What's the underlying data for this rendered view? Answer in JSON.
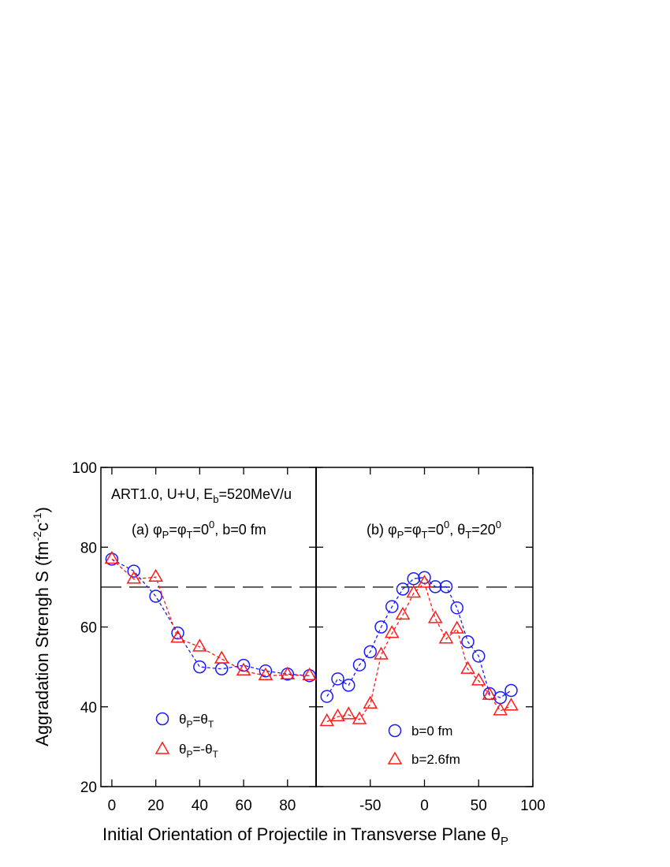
{
  "chart_data": [
    {
      "type": "line",
      "panel": "a",
      "ylabel": "Aggradation Strengh S (fm⁻²c⁻¹)",
      "ylim": [
        20,
        100
      ],
      "xlim": [
        -5,
        93
      ],
      "yticks": [
        20,
        40,
        60,
        80,
        100
      ],
      "xticks": [
        0,
        20,
        40,
        60,
        80
      ],
      "annotations": [
        "ART1.0, U+U, E_b=520MeV/u",
        "(a) φP=φT=0⁰, b=0 fm"
      ],
      "reference_line": 70,
      "series": [
        {
          "name": "θP=θT",
          "marker": "circle",
          "color": "#1a1aff",
          "x": [
            0,
            10,
            20,
            30,
            40,
            50,
            60,
            70,
            80,
            90
          ],
          "y": [
            77,
            74,
            67.7,
            58.5,
            50,
            49.5,
            50.4,
            49,
            48.2,
            47.8
          ]
        },
        {
          "name": "θP=-θT",
          "marker": "triangle",
          "color": "#ff1a1a",
          "x": [
            0,
            10,
            20,
            30,
            40,
            50,
            60,
            70,
            80,
            90
          ],
          "y": [
            77,
            72,
            72.5,
            57.2,
            55,
            52,
            49,
            47.8,
            48,
            47.8
          ]
        }
      ]
    },
    {
      "type": "line",
      "panel": "b",
      "ylim": [
        20,
        100
      ],
      "xlim": [
        -100,
        100
      ],
      "xticks": [
        -50,
        0,
        50,
        100
      ],
      "annotations": [
        "(b) φP=φT=0⁰, θT=20⁰"
      ],
      "reference_line": 70,
      "series": [
        {
          "name": "b=0 fm",
          "marker": "circle",
          "color": "#1a1aff",
          "x": [
            -90,
            -80,
            -70,
            -60,
            -50,
            -40,
            -30,
            -20,
            -10,
            0,
            10,
            20,
            30,
            40,
            50,
            60,
            70,
            80
          ],
          "y": [
            42.6,
            47,
            45.4,
            50.5,
            53.8,
            60,
            65.1,
            69.5,
            72.1,
            72.4,
            70.1,
            70.1,
            64.8,
            56.3,
            52.7,
            43.3,
            42.3,
            44.1
          ]
        },
        {
          "name": "b=2.6fm",
          "marker": "triangle",
          "color": "#ff1a1a",
          "x": [
            -90,
            -80,
            -70,
            -60,
            -50,
            -40,
            -30,
            -20,
            -10,
            0,
            10,
            20,
            30,
            40,
            50,
            60,
            70,
            80
          ],
          "y": [
            36.3,
            37.5,
            38,
            36.8,
            40.7,
            53,
            58.4,
            63,
            68.5,
            71,
            62.1,
            57,
            59.5,
            49.4,
            46.5,
            42.9,
            39,
            40.2
          ]
        }
      ]
    }
  ],
  "shared_xlabel": "Initial Orientation of Projectile in Transverse Plane θP",
  "text": {
    "annot_a1_main": "ART1.0, U+U, E",
    "annot_a1_sub": "b",
    "annot_a1_tail": "=520MeV/u",
    "annot_a2_pre": "(a) φ",
    "annot_a2_sub1": "P",
    "annot_a2_mid": "=φ",
    "annot_a2_sub2": "T",
    "annot_a2_eq": "=0",
    "annot_a2_sup": "0",
    "annot_a2_tail": ", b=0 fm",
    "annot_b_pre": "(b) φ",
    "annot_b_sub1": "P",
    "annot_b_mid": "=φ",
    "annot_b_sub2": "T",
    "annot_b_eq": "=0",
    "annot_b_sup": "0",
    "annot_b_comma": ", θ",
    "annot_b_sub3": "T",
    "annot_b_eq2": "=20",
    "annot_b_sup2": "0",
    "ylabel_main": "Aggradation Strengh S (fm",
    "ylabel_sup1": "-2",
    "ylabel_mid": "c",
    "ylabel_sup2": "-1",
    "ylabel_tail": ")",
    "xlabel_main": "Initial Orientation of Projectile in Transverse Plane θ",
    "xlabel_sub": "P",
    "leg_a1_pre": "θ",
    "leg_a1_sub1": "P",
    "leg_a1_mid": "=θ",
    "leg_a1_sub2": "T",
    "leg_a2_pre": "θ",
    "leg_a2_sub1": "P",
    "leg_a2_mid": "=-θ",
    "leg_a2_sub2": "T",
    "leg_b1": "b=0 fm",
    "leg_b2": "b=2.6fm"
  }
}
